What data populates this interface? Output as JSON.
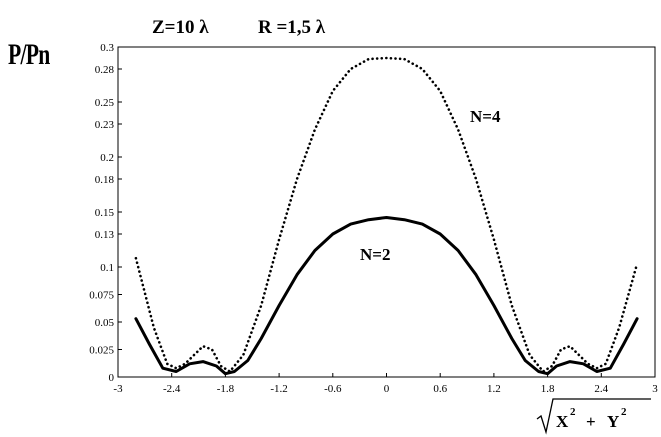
{
  "chart_data": {
    "type": "line",
    "header": {
      "z_text": "Z=10 λ",
      "r_text": "R =1,5 λ"
    },
    "ylabel": "P/Pn",
    "xlabel": {
      "radicand_x": "X",
      "radicand_y": "Y",
      "exponent": "2",
      "plus": "+"
    },
    "xlim": [
      -3,
      3
    ],
    "ylim": [
      0,
      0.3
    ],
    "xticks": [
      "-3",
      "-2.4",
      "-1.8",
      "-1.2",
      "-0.6",
      "0",
      "0.6",
      "1.2",
      "1.8",
      "2.4",
      "3"
    ],
    "yticks": [
      "0",
      "0.025",
      "0.05",
      "0.075",
      "0.1",
      "0.13",
      "0.15",
      "0.18",
      "0.2",
      "0.23",
      "0.25",
      "0.28",
      "0.3"
    ],
    "grid": false,
    "series": [
      {
        "name": "N=4",
        "style": "dotted",
        "points": [
          [
            -2.8,
            0.108
          ],
          [
            -2.6,
            0.045
          ],
          [
            -2.45,
            0.012
          ],
          [
            -2.35,
            0.008
          ],
          [
            -2.25,
            0.012
          ],
          [
            -2.05,
            0.028
          ],
          [
            -1.95,
            0.025
          ],
          [
            -1.85,
            0.01
          ],
          [
            -1.75,
            0.005
          ],
          [
            -1.6,
            0.02
          ],
          [
            -1.4,
            0.065
          ],
          [
            -1.2,
            0.125
          ],
          [
            -1.0,
            0.18
          ],
          [
            -0.8,
            0.225
          ],
          [
            -0.6,
            0.26
          ],
          [
            -0.4,
            0.28
          ],
          [
            -0.2,
            0.289
          ],
          [
            0,
            0.29
          ],
          [
            0.2,
            0.289
          ],
          [
            0.4,
            0.28
          ],
          [
            0.6,
            0.26
          ],
          [
            0.8,
            0.225
          ],
          [
            1.0,
            0.18
          ],
          [
            1.2,
            0.125
          ],
          [
            1.4,
            0.065
          ],
          [
            1.6,
            0.02
          ],
          [
            1.75,
            0.005
          ],
          [
            1.85,
            0.01
          ],
          [
            1.95,
            0.025
          ],
          [
            2.05,
            0.028
          ],
          [
            2.25,
            0.012
          ],
          [
            2.35,
            0.008
          ],
          [
            2.45,
            0.012
          ],
          [
            2.6,
            0.045
          ],
          [
            2.8,
            0.103
          ]
        ]
      },
      {
        "name": "N=2",
        "style": "solid",
        "points": [
          [
            -2.8,
            0.053
          ],
          [
            -2.65,
            0.03
          ],
          [
            -2.5,
            0.008
          ],
          [
            -2.35,
            0.005
          ],
          [
            -2.2,
            0.012
          ],
          [
            -2.05,
            0.014
          ],
          [
            -1.9,
            0.01
          ],
          [
            -1.8,
            0.003
          ],
          [
            -1.7,
            0.005
          ],
          [
            -1.55,
            0.015
          ],
          [
            -1.4,
            0.035
          ],
          [
            -1.2,
            0.065
          ],
          [
            -1.0,
            0.093
          ],
          [
            -0.8,
            0.115
          ],
          [
            -0.6,
            0.13
          ],
          [
            -0.4,
            0.139
          ],
          [
            -0.2,
            0.143
          ],
          [
            0,
            0.145
          ],
          [
            0.2,
            0.143
          ],
          [
            0.4,
            0.139
          ],
          [
            0.6,
            0.13
          ],
          [
            0.8,
            0.115
          ],
          [
            1.0,
            0.093
          ],
          [
            1.2,
            0.065
          ],
          [
            1.4,
            0.035
          ],
          [
            1.55,
            0.015
          ],
          [
            1.7,
            0.005
          ],
          [
            1.8,
            0.003
          ],
          [
            1.9,
            0.01
          ],
          [
            2.05,
            0.014
          ],
          [
            2.2,
            0.012
          ],
          [
            2.35,
            0.005
          ],
          [
            2.5,
            0.008
          ],
          [
            2.65,
            0.03
          ],
          [
            2.8,
            0.053
          ]
        ]
      }
    ]
  }
}
